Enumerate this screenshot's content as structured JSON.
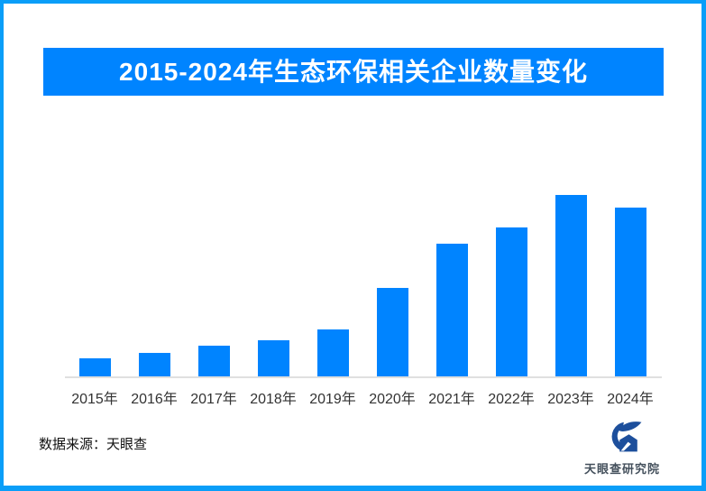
{
  "frame": {
    "border_color": "#0A9EF8",
    "background_color": "#FFFFFF"
  },
  "header": {
    "title": "2015-2024年生态环保相关企业数量变化",
    "banner_color": "#0084FF",
    "title_color": "#FFFFFF"
  },
  "chart_data": {
    "type": "bar",
    "title": "2015-2024年生态环保相关企业数量变化",
    "categories": [
      "2015年",
      "2016年",
      "2017年",
      "2018年",
      "2019年",
      "2020年",
      "2021年",
      "2022年",
      "2023年",
      "2024年"
    ],
    "values": [
      10,
      13,
      17,
      20,
      26,
      49,
      73,
      82,
      100,
      93
    ],
    "value_basis": "relative bar height as % of tallest bar; chart shows no numeric axis or data labels",
    "ylim": [
      0,
      100
    ],
    "xlabel": "",
    "ylabel": "",
    "grid": false,
    "legend": "none",
    "bar_color": "#0084FF",
    "axis_line_color": "#E0E0E0",
    "tick_label_color": "#333333"
  },
  "footer": {
    "source_label": "数据来源：天眼查",
    "logo_text": "天眼查研究院",
    "logo_color": "#1D4F9C"
  }
}
